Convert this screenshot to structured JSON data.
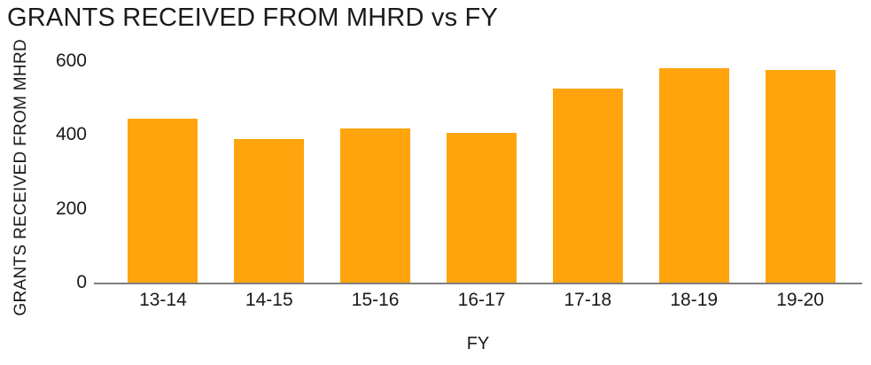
{
  "chart_data": {
    "type": "bar",
    "title": "GRANTS RECEIVED FROM MHRD vs FY",
    "xlabel": "FY",
    "ylabel": "GRANTS RECEIVED FROM MHRD",
    "categories": [
      "13-14",
      "14-15",
      "15-16",
      "16-17",
      "17-18",
      "18-19",
      "19-20"
    ],
    "values": [
      445,
      390,
      418,
      405,
      525,
      580,
      575
    ],
    "ylim": [
      0,
      600
    ],
    "yticks": [
      0,
      200,
      400,
      600
    ],
    "grid": false,
    "legend": false,
    "bar_color": "#FFA40D",
    "axis_color": "#7F7F7F",
    "text_color": "#1A1A1A",
    "background_color": "#FFFFFF"
  }
}
